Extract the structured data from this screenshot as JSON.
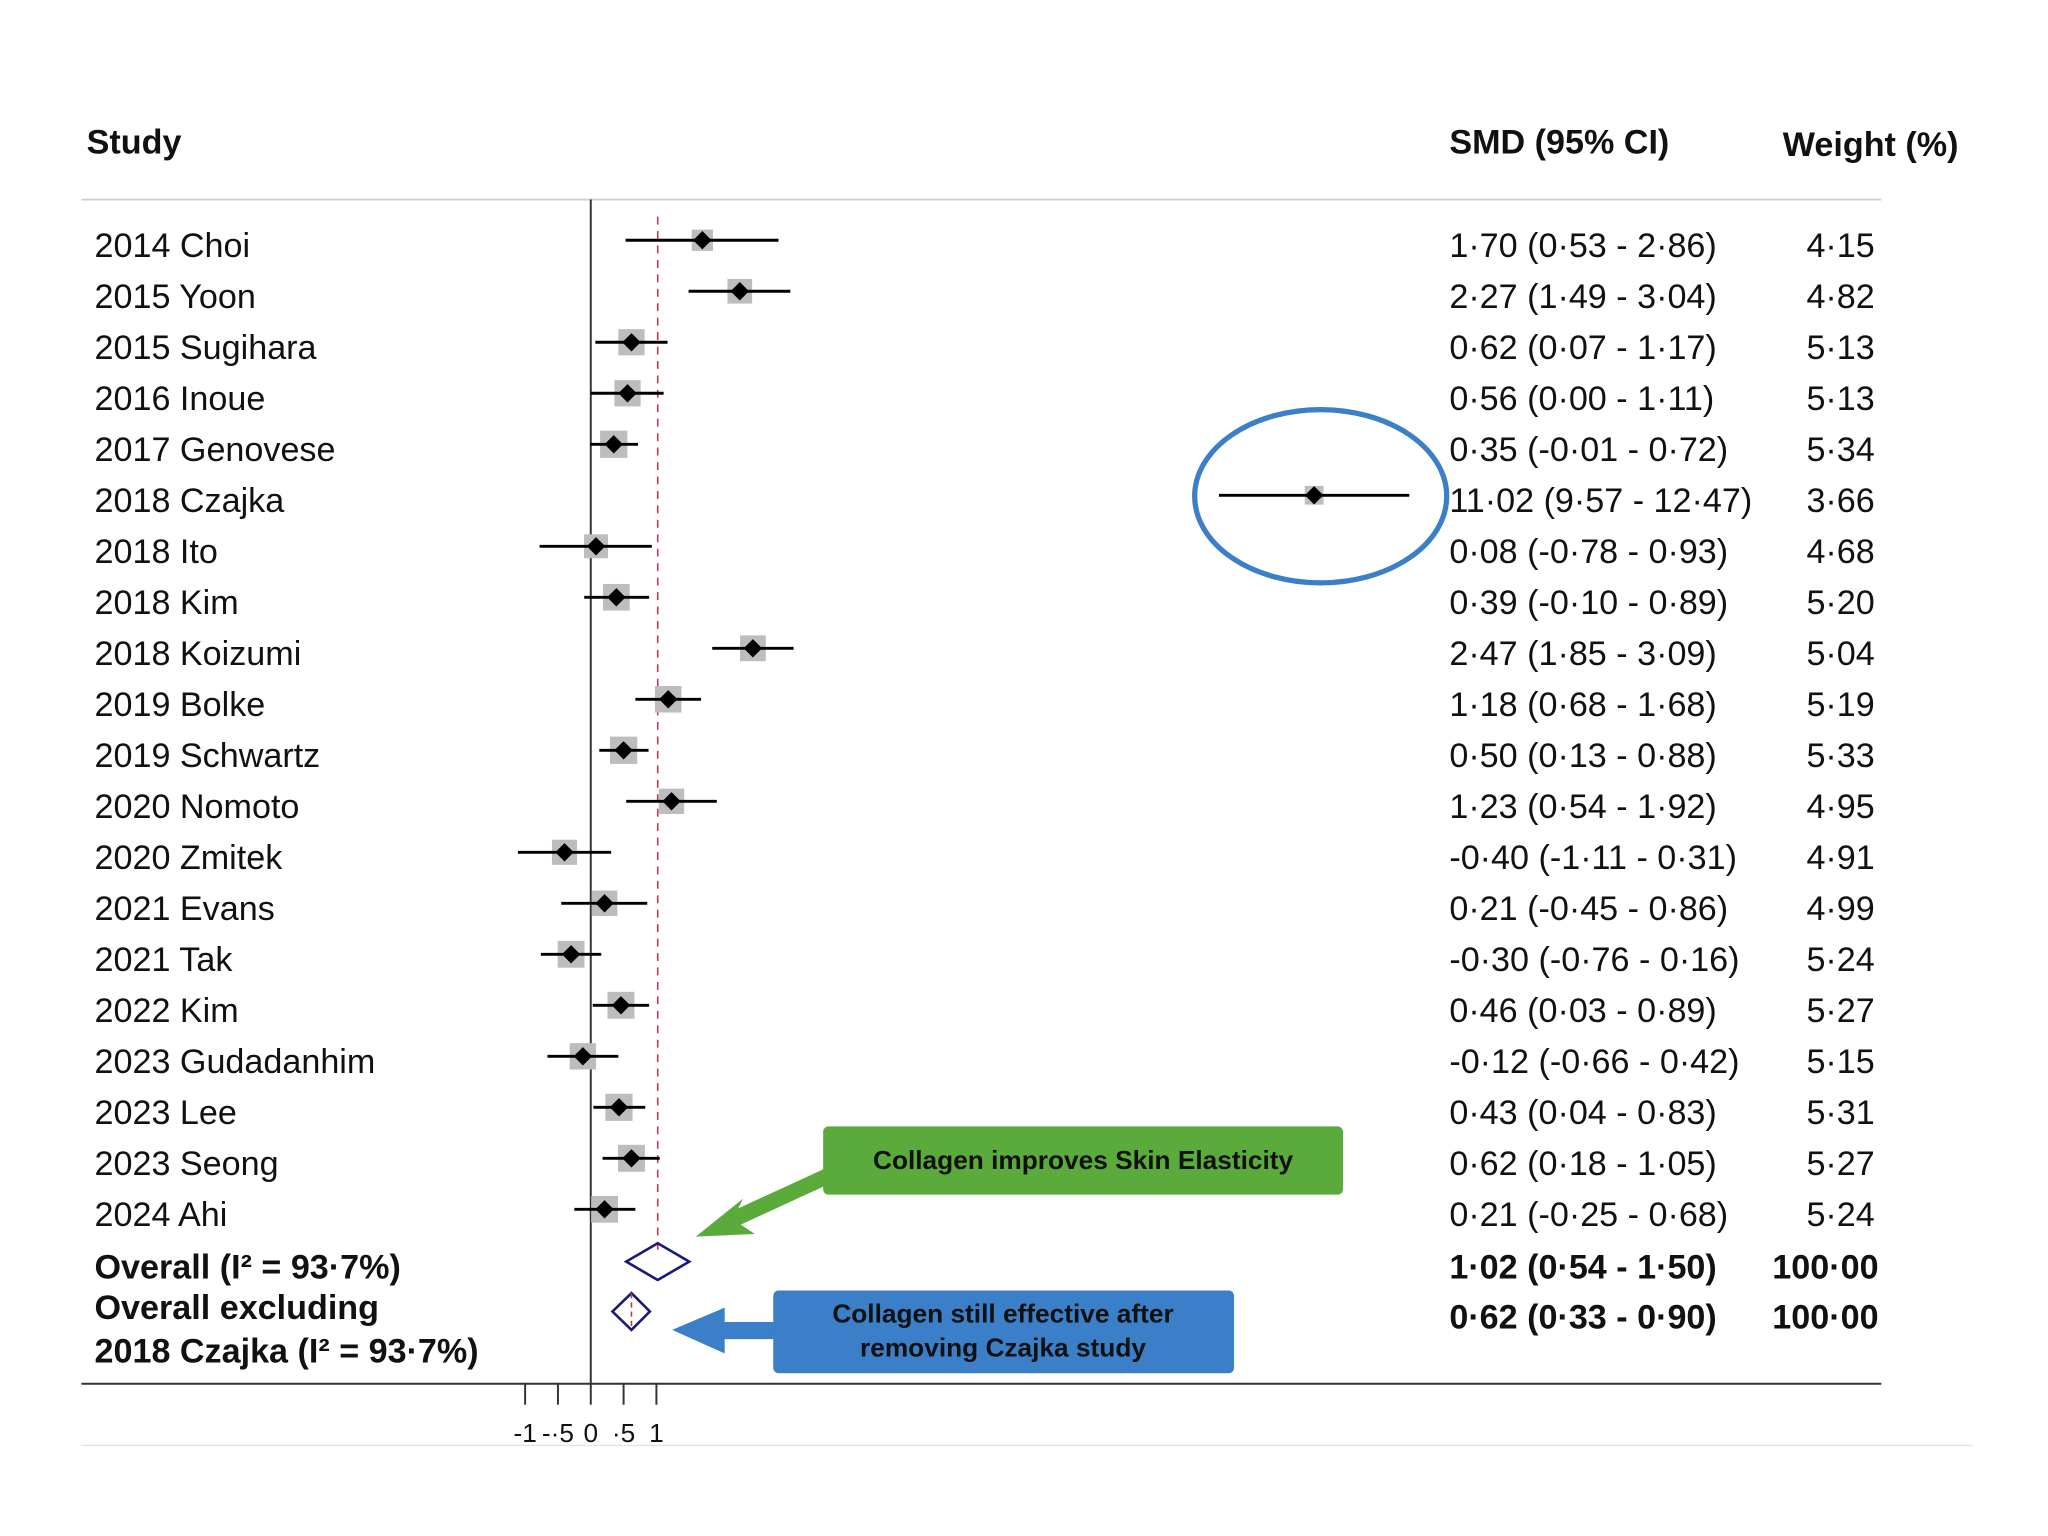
{
  "chart_data": {
    "type": "forest",
    "headers": {
      "study": "Study",
      "estimate": "SMD (95% CI)",
      "weight": "Weight (%)"
    },
    "categories": [
      "2014 Choi",
      "2015 Yoon",
      "2015 Sugihara",
      "2016 Inoue",
      "2017 Genovese",
      "2018 Czajka",
      "2018 Ito",
      "2018 Kim",
      "2018 Koizumi",
      "2019 Bolke",
      "2019 Schwartz",
      "2020 Nomoto",
      "2020 Zmitek",
      "2021 Evans",
      "2021 Tak",
      "2022 Kim",
      "2023 Gudadanhim",
      "2023 Lee",
      "2023 Seong",
      "2024 Ahi"
    ],
    "values": [
      1.7,
      2.27,
      0.62,
      0.56,
      0.35,
      11.02,
      0.08,
      0.39,
      2.47,
      1.18,
      0.5,
      1.23,
      -0.4,
      0.21,
      -0.3,
      0.46,
      -0.12,
      0.43,
      0.62,
      0.21
    ],
    "lower": [
      0.53,
      1.49,
      0.07,
      0.0,
      -0.01,
      9.57,
      -0.78,
      -0.1,
      1.85,
      0.68,
      0.13,
      0.54,
      -1.11,
      -0.45,
      -0.76,
      0.03,
      -0.66,
      0.04,
      0.18,
      -0.25
    ],
    "upper": [
      2.86,
      3.04,
      1.17,
      1.11,
      0.72,
      12.47,
      0.93,
      0.89,
      3.09,
      1.68,
      0.88,
      1.92,
      0.31,
      0.86,
      0.16,
      0.89,
      0.42,
      0.83,
      1.05,
      0.68
    ],
    "value_labels": [
      "1·70 (0·53 - 2·86)",
      "2·27 (1·49 - 3·04)",
      "0·62 (0·07 - 1·17)",
      "0·56 (0·00 - 1·11)",
      "0·35 (-0·01 - 0·72)",
      "11·02 (9·57 - 12·47)",
      "0·08 (-0·78 - 0·93)",
      "0·39 (-0·10 - 0·89)",
      "2·47 (1·85 - 3·09)",
      "1·18 (0·68 - 1·68)",
      "0·50 (0·13 - 0·88)",
      "1·23 (0·54 - 1·92)",
      "-0·40 (-1·11 - 0·31)",
      "0·21 (-0·45 - 0·86)",
      "-0·30 (-0·76 - 0·16)",
      "0·46 (0·03 - 0·89)",
      "-0·12 (-0·66 - 0·42)",
      "0·43 (0·04 - 0·83)",
      "0·62 (0·18 - 1·05)",
      "0·21 (-0·25 - 0·68)"
    ],
    "weights": [
      4.15,
      4.82,
      5.13,
      5.13,
      5.34,
      3.66,
      4.68,
      5.2,
      5.04,
      5.19,
      5.33,
      4.95,
      4.91,
      4.99,
      5.24,
      5.27,
      5.15,
      5.31,
      5.27,
      5.24
    ],
    "weight_labels": [
      "4·15",
      "4·82",
      "5·13",
      "5·13",
      "5·34",
      "3·66",
      "4·68",
      "5·20",
      "5·04",
      "5·19",
      "5·33",
      "4·95",
      "4·91",
      "4·99",
      "5·24",
      "5·27",
      "5·15",
      "5·31",
      "5·27",
      "5·24"
    ],
    "overall": [
      {
        "label_lines": [
          "Overall (I² = 93·7%)"
        ],
        "value": 1.02,
        "lower": 0.54,
        "upper": 1.5,
        "value_label": "1·02 (0·54 - 1·50)",
        "weight": 100,
        "weight_label": "100·00"
      },
      {
        "label_lines": [
          "Overall excluding",
          "2018 Czajka (I² = 93·7%)"
        ],
        "value": 0.62,
        "lower": 0.33,
        "upper": 0.9,
        "value_label": "0·62 (0·33 - 0·90)",
        "weight": 100,
        "weight_label": "100·00"
      }
    ],
    "xlim": [
      -1,
      1
    ],
    "xticks": [
      {
        "value": -1,
        "label": "-1"
      },
      {
        "value": -0.5,
        "label": "-·5"
      },
      0,
      {
        "value": 0.5,
        "label": "·5"
      },
      1
    ],
    "marker_color": "#000000",
    "box_color": "#bdbdbd",
    "diamond_color": "#1a1a7a",
    "reference_color": "#c0394b",
    "annotations": [
      {
        "lines": [
          "Collagen improves Skin Elasticity"
        ],
        "color": "#5aab3c"
      },
      {
        "lines": [
          "Collagen still effective after",
          "removing Czajka study"
        ],
        "color": "#3a7fc8"
      }
    ]
  }
}
